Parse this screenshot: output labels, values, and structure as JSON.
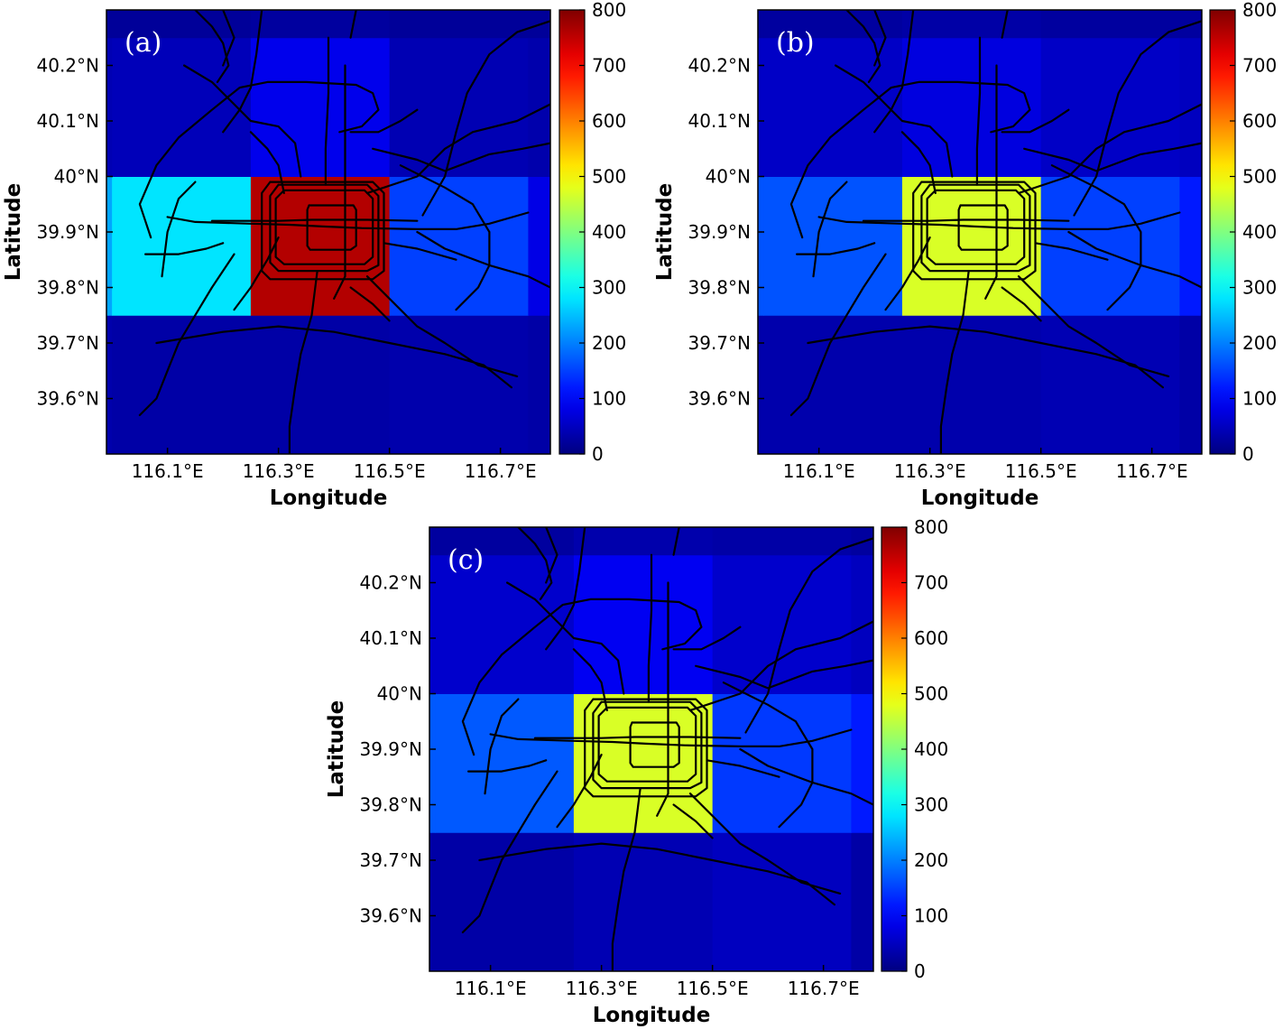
{
  "figure": {
    "panels": [
      "(a)",
      "(b)",
      "(c)"
    ]
  },
  "chart_data": [
    {
      "type": "heatmap",
      "panel_label": "(a)",
      "xlabel": "Longitude",
      "ylabel": "Latitude",
      "xlim": [
        115.99,
        116.79
      ],
      "ylim": [
        39.5,
        40.3
      ],
      "x_ticks": [
        116.1,
        116.3,
        116.5,
        116.7
      ],
      "x_tick_labels": [
        "116.1°E",
        "116.3°E",
        "116.5°E",
        "116.7°E"
      ],
      "y_ticks": [
        39.6,
        39.7,
        39.8,
        39.9,
        40.0,
        40.1,
        40.2
      ],
      "y_tick_labels": [
        "39.6°N",
        "39.7°N",
        "39.8°N",
        "39.9°N",
        "40°N",
        "40.1°N",
        "40.2°N"
      ],
      "x_edges": [
        115.99,
        116.0,
        116.25,
        116.5,
        116.75,
        116.79
      ],
      "y_edges": [
        39.5,
        39.75,
        40.0,
        40.25,
        40.3
      ],
      "grid_values": [
        [
          35,
          30,
          30,
          35,
          30
        ],
        [
          230,
          280,
          760,
          150,
          80
        ],
        [
          40,
          45,
          85,
          40,
          35
        ],
        [
          20,
          20,
          25,
          20,
          20
        ]
      ],
      "colorbar": {
        "min": 0,
        "max": 800,
        "ticks": [
          "0",
          "100",
          "200",
          "300",
          "400",
          "500",
          "600",
          "700",
          "800"
        ],
        "colormap": "jet"
      },
      "overlay": "metro-lines"
    },
    {
      "type": "heatmap",
      "panel_label": "(b)",
      "xlabel": "Longitude",
      "ylabel": "Latitude",
      "xlim": [
        115.99,
        116.79
      ],
      "ylim": [
        39.5,
        40.3
      ],
      "x_ticks": [
        116.1,
        116.3,
        116.5,
        116.7
      ],
      "x_tick_labels": [
        "116.1°E",
        "116.3°E",
        "116.5°E",
        "116.7°E"
      ],
      "y_ticks": [
        39.6,
        39.7,
        39.8,
        39.9,
        40.0,
        40.1,
        40.2
      ],
      "y_tick_labels": [
        "39.6°N",
        "39.7°N",
        "39.8°N",
        "39.9°N",
        "40°N",
        "40.1°N",
        "40.2°N"
      ],
      "x_edges": [
        115.99,
        116.0,
        116.25,
        116.5,
        116.75,
        116.79
      ],
      "y_edges": [
        39.5,
        39.75,
        40.0,
        40.25,
        40.3
      ],
      "grid_values": [
        [
          35,
          35,
          35,
          40,
          30
        ],
        [
          165,
          165,
          470,
          150,
          120
        ],
        [
          55,
          55,
          75,
          55,
          50
        ],
        [
          25,
          25,
          30,
          25,
          25
        ]
      ],
      "colorbar": {
        "min": 0,
        "max": 800,
        "ticks": [
          "0",
          "100",
          "200",
          "300",
          "400",
          "500",
          "600",
          "700",
          "800"
        ],
        "colormap": "jet"
      },
      "overlay": "metro-lines"
    },
    {
      "type": "heatmap",
      "panel_label": "(c)",
      "xlabel": "Longitude",
      "ylabel": "Latitude",
      "xlim": [
        115.99,
        116.79
      ],
      "ylim": [
        39.5,
        40.3
      ],
      "x_ticks": [
        116.1,
        116.3,
        116.5,
        116.7
      ],
      "x_tick_labels": [
        "116.1°E",
        "116.3°E",
        "116.5°E",
        "116.7°E"
      ],
      "y_ticks": [
        39.6,
        39.7,
        39.8,
        39.9,
        40.0,
        40.1,
        40.2
      ],
      "y_tick_labels": [
        "39.6°N",
        "39.7°N",
        "39.8°N",
        "39.9°N",
        "40°N",
        "40.1°N",
        "40.2°N"
      ],
      "x_edges": [
        115.99,
        116.0,
        116.25,
        116.5,
        116.75,
        116.79
      ],
      "y_edges": [
        39.5,
        39.75,
        40.0,
        40.25,
        40.3
      ],
      "grid_values": [
        [
          30,
          30,
          40,
          50,
          30
        ],
        [
          170,
          170,
          470,
          145,
          120
        ],
        [
          60,
          60,
          90,
          60,
          50
        ],
        [
          25,
          25,
          35,
          30,
          25
        ]
      ],
      "colorbar": {
        "min": 0,
        "max": 800,
        "ticks": [
          "0",
          "100",
          "200",
          "300",
          "400",
          "500",
          "600",
          "700",
          "800"
        ],
        "colormap": "jet"
      },
      "overlay": "metro-lines"
    }
  ]
}
